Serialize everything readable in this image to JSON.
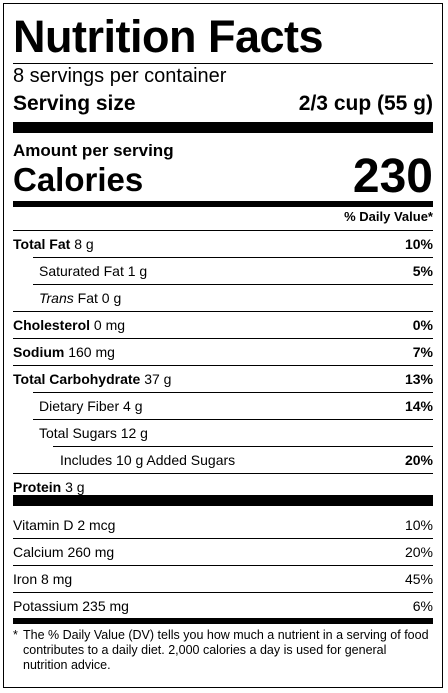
{
  "title": "Nutrition Facts",
  "servings_per_container": "8 servings per container",
  "serving_size": {
    "label": "Serving size",
    "value": "2/3 cup (55 g)"
  },
  "amount_per_serving": "Amount per serving",
  "calories": {
    "label": "Calories",
    "value": "230"
  },
  "daily_value_header": "% Daily Value*",
  "nutrients": {
    "total_fat": {
      "name": "Total Fat",
      "amount": "8 g",
      "dv": "10%"
    },
    "saturated_fat": {
      "name": "Saturated Fat",
      "amount": "1 g",
      "dv": "5%"
    },
    "trans_fat": {
      "name": "Trans",
      "suffix": "Fat",
      "amount": "0 g"
    },
    "cholesterol": {
      "name": "Cholesterol",
      "amount": "0 mg",
      "dv": "0%"
    },
    "sodium": {
      "name": "Sodium",
      "amount": "160 mg",
      "dv": "7%"
    },
    "total_carbohydrate": {
      "name": "Total Carbohydrate",
      "amount": "37 g",
      "dv": "13%"
    },
    "dietary_fiber": {
      "name": "Dietary Fiber",
      "amount": "4 g",
      "dv": "14%"
    },
    "total_sugars": {
      "name": "Total Sugars",
      "amount": "12 g"
    },
    "added_sugars": {
      "prefix": "Includes",
      "amount": "10 g",
      "name": "Added Sugars",
      "dv": "20%"
    },
    "protein": {
      "name": "Protein",
      "amount": "3 g"
    }
  },
  "vitamins": [
    {
      "name": "Vitamin D",
      "amount": "2 mcg",
      "dv": "10%"
    },
    {
      "name": "Calcium",
      "amount": "260 mg",
      "dv": "20%"
    },
    {
      "name": "Iron",
      "amount": "8 mg",
      "dv": "45%"
    },
    {
      "name": "Potassium",
      "amount": "235 mg",
      "dv": "6%"
    }
  ],
  "footnote": {
    "star": "*",
    "text": "The % Daily Value (DV) tells you how much a nutrient in a serving of food contributes to a daily diet. 2,000 calories a day is used for general nutrition advice."
  }
}
